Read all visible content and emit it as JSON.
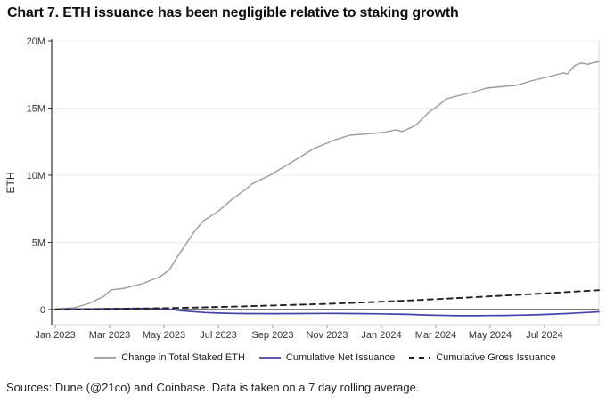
{
  "title": "Chart 7. ETH issuance has been negligible relative to staking growth",
  "source": "Sources: Dune (@21co) and Coinbase. Data is taken on a 7 day rolling average.",
  "colors": {
    "staked_line": "#9a9a9a",
    "net_issuance_line": "#4343ae",
    "gross_issuance_line": "#222222",
    "zero_line": "#4a4a4a",
    "axis": "#333333",
    "gridline": "#ececec",
    "plot_border": "#d9d9d9",
    "tick_label": "#333333"
  },
  "chart_data": {
    "type": "line",
    "title": "Chart 7. ETH issuance has been negligible relative to staking growth",
    "xlabel": "",
    "ylabel": "ETH",
    "x_unit": "months since Jan 2023",
    "xlim": [
      0,
      20
    ],
    "ylim": [
      -1130000,
      20000000
    ],
    "grid": "horizontal",
    "legend_position": "bottom",
    "y_ticks": [
      {
        "v": 0,
        "label": "0"
      },
      {
        "v": 5000000,
        "label": "5M"
      },
      {
        "v": 10000000,
        "label": "10M"
      },
      {
        "v": 15000000,
        "label": "15M"
      },
      {
        "v": 20000000,
        "label": "20M"
      }
    ],
    "x_ticks": [
      {
        "m": 0,
        "label": "Jan 2023"
      },
      {
        "m": 2,
        "label": "Mar 2023"
      },
      {
        "m": 4,
        "label": "May 2023"
      },
      {
        "m": 6,
        "label": "Jul 2023"
      },
      {
        "m": 8,
        "label": "Sep 2023"
      },
      {
        "m": 10,
        "label": "Nov 2023"
      },
      {
        "m": 12,
        "label": "Jan 2024"
      },
      {
        "m": 14,
        "label": "Mar 2024"
      },
      {
        "m": 16,
        "label": "May 2024"
      },
      {
        "m": 18,
        "label": "Jul 2024"
      }
    ],
    "series": [
      {
        "name": "Change in Total Staked ETH",
        "color": "#9a9a9a",
        "style": "solid",
        "width": 1.4,
        "x": [
          0,
          0.7,
          1.25,
          1.8,
          2.05,
          2.3,
          2.55,
          3.2,
          3.86,
          4.2,
          4.5,
          4.85,
          5.15,
          5.45,
          5.75,
          6.06,
          6.5,
          7.04,
          7.23,
          7.9,
          8.77,
          9.52,
          10.31,
          10.83,
          11.3,
          12.05,
          12.54,
          12.77,
          13.26,
          13.75,
          14.08,
          14.4,
          14.9,
          15.32,
          15.87,
          16.53,
          16.95,
          17.5,
          18.17,
          18.69,
          18.85,
          19.1,
          19.35,
          19.6,
          19.78,
          20.0
        ],
        "values": [
          50000,
          130000,
          460000,
          990000,
          1460000,
          1520000,
          1590000,
          1920000,
          2450000,
          2950000,
          3950000,
          5000000,
          5900000,
          6600000,
          7000000,
          7420000,
          8200000,
          9000000,
          9340000,
          10000000,
          11060000,
          11990000,
          12650000,
          12980000,
          13050000,
          13180000,
          13380000,
          13250000,
          13710000,
          14700000,
          15170000,
          15700000,
          15960000,
          16160000,
          16490000,
          16620000,
          16690000,
          17020000,
          17350000,
          17620000,
          17550000,
          18150000,
          18360000,
          18260000,
          18380000,
          18450000
        ]
      },
      {
        "name": "Cumulative Net Issuance",
        "color": "#4343ae",
        "style": "solid",
        "width": 1.7,
        "x": [
          0,
          0.5,
          1,
          1.5,
          2,
          2.5,
          3,
          3.3,
          3.6,
          4,
          4.3,
          4.6,
          5,
          5.5,
          6,
          6.5,
          7,
          8,
          9,
          10,
          11,
          12,
          12.5,
          13,
          13.5,
          14,
          14.5,
          15,
          15.5,
          16,
          16.5,
          17,
          17.5,
          18,
          18.5,
          19,
          19.5,
          20
        ],
        "values": [
          0,
          20000,
          40000,
          50000,
          60000,
          70000,
          80000,
          80000,
          70000,
          40000,
          0,
          -80000,
          -150000,
          -220000,
          -260000,
          -290000,
          -300000,
          -310000,
          -300000,
          -290000,
          -300000,
          -320000,
          -340000,
          -360000,
          -400000,
          -430000,
          -450000,
          -460000,
          -460000,
          -450000,
          -440000,
          -420000,
          -400000,
          -370000,
          -330000,
          -280000,
          -220000,
          -170000
        ]
      },
      {
        "name": "Cumulative Gross Issuance",
        "color": "#222222",
        "style": "dashed",
        "width": 1.9,
        "x": [
          0,
          1,
          2,
          3,
          4,
          5,
          6,
          7,
          8,
          9,
          10,
          11,
          12,
          13,
          14,
          15,
          16,
          17,
          18,
          19,
          20
        ],
        "values": [
          0,
          20000,
          40000,
          70000,
          100000,
          140000,
          190000,
          240000,
          300000,
          360000,
          420000,
          500000,
          580000,
          670000,
          770000,
          870000,
          980000,
          1090000,
          1200000,
          1320000,
          1440000
        ]
      }
    ]
  }
}
